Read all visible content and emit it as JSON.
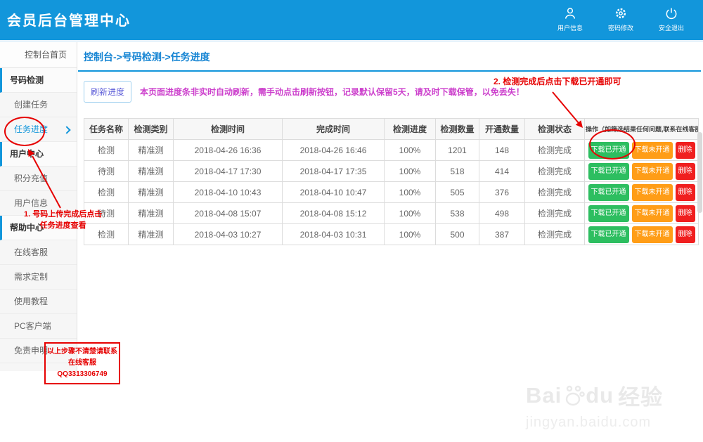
{
  "header": {
    "title": "会员后台管理中心",
    "actions": [
      {
        "label": "用户信息",
        "icon": "user-icon"
      },
      {
        "label": "密码修改",
        "icon": "gear-icon"
      },
      {
        "label": "安全退出",
        "icon": "power-icon"
      }
    ]
  },
  "sidebar": {
    "home": "控制台首页",
    "items": [
      {
        "name": "haoma-jiance",
        "label": "号码检测",
        "type": "category",
        "active": false
      },
      {
        "name": "chuangjian-renwu",
        "label": "创建任务",
        "type": "sub",
        "active": false
      },
      {
        "name": "renwu-jindu",
        "label": "任务进度",
        "type": "sub",
        "active": true
      },
      {
        "name": "yonghu-zhongxin",
        "label": "用户中心",
        "type": "category",
        "active": false
      },
      {
        "name": "jifen-chongzhi",
        "label": "积分充值",
        "type": "sub",
        "active": false
      },
      {
        "name": "yonghu-xinxi",
        "label": "用户信息",
        "type": "sub",
        "active": false
      },
      {
        "name": "bangzhu-zhongxin",
        "label": "帮助中心",
        "type": "category",
        "active": false
      },
      {
        "name": "zaixian-kefu",
        "label": "在线客服",
        "type": "sub",
        "active": false
      },
      {
        "name": "xuqiu-dingzhi",
        "label": "需求定制",
        "type": "sub",
        "active": false
      },
      {
        "name": "shiyong-jiaocheng",
        "label": "使用教程",
        "type": "sub",
        "active": false
      },
      {
        "name": "pc-kehuduan",
        "label": "PC客户端",
        "type": "sub",
        "active": false
      },
      {
        "name": "mianze-shenming",
        "label": "免责申明",
        "type": "sub",
        "active": false
      }
    ]
  },
  "breadcrumb": "控制台->号码检测->任务进度",
  "toolbar": {
    "refresh_label": "刷新进度",
    "notice": "本页面进度条非实时自动刷新，需手动点击刷新按钮，记录默认保留5天，请及时下载保管，以免丢失！"
  },
  "table": {
    "headers": [
      "任务名称",
      "检测类别",
      "检测时间",
      "完成时间",
      "检测进度",
      "检测数量",
      "开通数量",
      "检测状态",
      "操作（如筛选结果任何问题,联系在线客服）"
    ],
    "rows": [
      {
        "task": "检测",
        "category": "精准测",
        "start_time": "2018-04-26 16:36",
        "finish_time": "2018-04-26 16:46",
        "progress": "100%",
        "checked_count": "1201",
        "opened_count": "148",
        "status": "检测完成"
      },
      {
        "task": "待测",
        "category": "精准测",
        "start_time": "2018-04-17 17:30",
        "finish_time": "2018-04-17 17:35",
        "progress": "100%",
        "checked_count": "518",
        "opened_count": "414",
        "status": "检测完成"
      },
      {
        "task": "检测",
        "category": "精准测",
        "start_time": "2018-04-10 10:43",
        "finish_time": "2018-04-10 10:47",
        "progress": "100%",
        "checked_count": "505",
        "opened_count": "376",
        "status": "检测完成"
      },
      {
        "task": "待测",
        "category": "精准测",
        "start_time": "2018-04-08 15:07",
        "finish_time": "2018-04-08 15:12",
        "progress": "100%",
        "checked_count": "538",
        "opened_count": "498",
        "status": "检测完成"
      },
      {
        "task": "检测",
        "category": "精准测",
        "start_time": "2018-04-03 10:27",
        "finish_time": "2018-04-03 10:31",
        "progress": "100%",
        "checked_count": "500",
        "opened_count": "387",
        "status": "检测完成"
      }
    ],
    "actions": {
      "download_opened": "下载已开通",
      "download_unopened": "下载未开通",
      "delete": "删除"
    }
  },
  "annotations": {
    "step1_line1": "1. 号码上传完成后点击",
    "step1_line2": "任务进度查看",
    "step2": "2. 检测完成后点击下载已开通即可",
    "contact_line1": "以上步骤不清楚请联系",
    "contact_line2": "在线客服QQ3313306749"
  },
  "watermark": {
    "brand_en": "Bai",
    "brand_en2": "du",
    "brand_cn": "经验",
    "url": "jingyan.baidu.com"
  },
  "colors": {
    "accent_blue": "#1296db",
    "breadcrumb_blue": "#1584d3",
    "notice_magenta": "#cc3fcc",
    "annotation_red": "#e60000",
    "button_green": "#2dbe60",
    "button_orange": "#ff9d17",
    "button_red": "#f01f1f"
  }
}
